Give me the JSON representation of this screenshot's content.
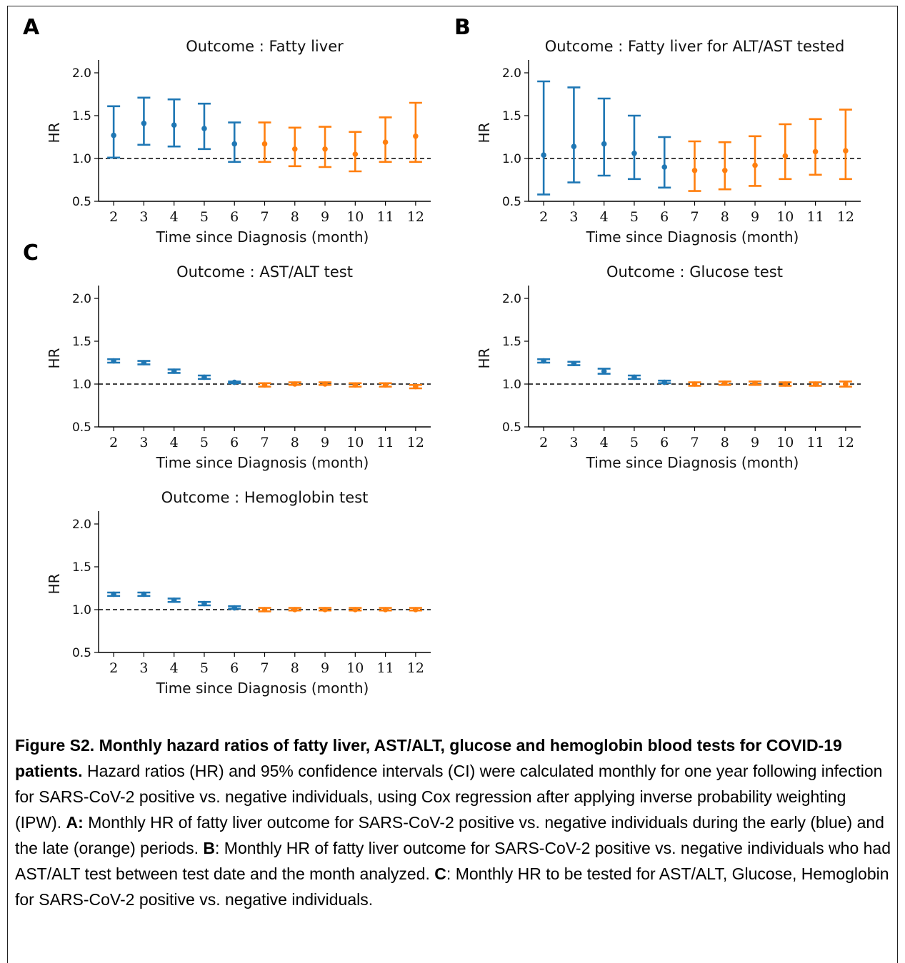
{
  "panel_letters": [
    "A",
    "B",
    "C"
  ],
  "colors": {
    "early": "#1f77b4",
    "late": "#ff7f0e",
    "reference": "#000000"
  },
  "chart_data": [
    {
      "type": "errorbar",
      "panel": "A",
      "title": "Outcome : Fatty liver",
      "xlabel": "Time since Diagnosis (month)",
      "ylabel": "HR",
      "ylim": [
        0.5,
        2.15
      ],
      "yticks": [
        "0.5",
        "1.0",
        "1.5",
        "2.0"
      ],
      "x": [
        2,
        3,
        4,
        5,
        6,
        7,
        8,
        9,
        10,
        11,
        12
      ],
      "hr": [
        1.27,
        1.41,
        1.39,
        1.35,
        1.17,
        1.17,
        1.11,
        1.11,
        1.05,
        1.19,
        1.26
      ],
      "ci_low": [
        1.01,
        1.16,
        1.14,
        1.11,
        0.96,
        0.96,
        0.91,
        0.9,
        0.85,
        0.96,
        0.96
      ],
      "ci_high": [
        1.61,
        1.71,
        1.69,
        1.64,
        1.42,
        1.42,
        1.36,
        1.37,
        1.31,
        1.48,
        1.65
      ],
      "period": [
        "early",
        "early",
        "early",
        "early",
        "early",
        "late",
        "late",
        "late",
        "late",
        "late",
        "late"
      ],
      "reference_line": 1.0
    },
    {
      "type": "errorbar",
      "panel": "B",
      "title": "Outcome : Fatty liver for ALT/AST tested",
      "xlabel": "Time since Diagnosis (month)",
      "ylabel": "HR",
      "ylim": [
        0.5,
        2.15
      ],
      "yticks": [
        "0.5",
        "1.0",
        "1.5",
        "2.0"
      ],
      "x": [
        2,
        3,
        4,
        5,
        6,
        7,
        8,
        9,
        10,
        11,
        12
      ],
      "hr": [
        1.04,
        1.14,
        1.17,
        1.06,
        0.9,
        0.86,
        0.86,
        0.92,
        1.03,
        1.08,
        1.09
      ],
      "ci_low": [
        0.58,
        0.72,
        0.8,
        0.76,
        0.66,
        0.62,
        0.64,
        0.68,
        0.76,
        0.81,
        0.76
      ],
      "ci_high": [
        1.9,
        1.83,
        1.7,
        1.5,
        1.25,
        1.2,
        1.19,
        1.26,
        1.4,
        1.46,
        1.57
      ],
      "period": [
        "early",
        "early",
        "early",
        "early",
        "early",
        "late",
        "late",
        "late",
        "late",
        "late",
        "late"
      ],
      "reference_line": 1.0
    },
    {
      "type": "errorbar",
      "panel": "C",
      "title": "Outcome : AST/ALT test",
      "xlabel": "Time since Diagnosis (month)",
      "ylabel": "HR",
      "ylim": [
        0.5,
        2.15
      ],
      "yticks": [
        "0.5",
        "1.0",
        "1.5",
        "2.0"
      ],
      "x": [
        2,
        3,
        4,
        5,
        6,
        7,
        8,
        9,
        10,
        11,
        12
      ],
      "hr": [
        1.27,
        1.25,
        1.15,
        1.08,
        1.02,
        0.99,
        1.0,
        1.0,
        0.99,
        0.99,
        0.97
      ],
      "ci_low": [
        1.25,
        1.23,
        1.13,
        1.06,
        1.01,
        0.97,
        0.99,
        0.99,
        0.97,
        0.97,
        0.95
      ],
      "ci_high": [
        1.29,
        1.27,
        1.17,
        1.1,
        1.03,
        1.01,
        1.02,
        1.02,
        1.01,
        1.01,
        0.99
      ],
      "period": [
        "early",
        "early",
        "early",
        "early",
        "early",
        "late",
        "late",
        "late",
        "late",
        "late",
        "late"
      ],
      "reference_line": 1.0
    },
    {
      "type": "errorbar",
      "panel": "",
      "title": "Outcome : Glucose test",
      "xlabel": "Time since Diagnosis (month)",
      "ylabel": "HR",
      "ylim": [
        0.5,
        2.15
      ],
      "yticks": [
        "0.5",
        "1.0",
        "1.5",
        "2.0"
      ],
      "x": [
        2,
        3,
        4,
        5,
        6,
        7,
        8,
        9,
        10,
        11,
        12
      ],
      "hr": [
        1.27,
        1.24,
        1.15,
        1.08,
        1.02,
        1.0,
        1.01,
        1.01,
        1.0,
        1.0,
        1.0
      ],
      "ci_low": [
        1.25,
        1.22,
        1.12,
        1.06,
        1.01,
        0.98,
        0.99,
        0.99,
        0.98,
        0.98,
        0.97
      ],
      "ci_high": [
        1.29,
        1.26,
        1.18,
        1.1,
        1.04,
        1.02,
        1.03,
        1.03,
        1.02,
        1.02,
        1.03
      ],
      "period": [
        "early",
        "early",
        "early",
        "early",
        "early",
        "late",
        "late",
        "late",
        "late",
        "late",
        "late"
      ],
      "reference_line": 1.0
    },
    {
      "type": "errorbar",
      "panel": "",
      "title": "Outcome : Hemoglobin test",
      "xlabel": "Time since Diagnosis (month)",
      "ylabel": "HR",
      "ylim": [
        0.5,
        2.15
      ],
      "yticks": [
        "0.5",
        "1.0",
        "1.5",
        "2.0"
      ],
      "x": [
        2,
        3,
        4,
        5,
        6,
        7,
        8,
        9,
        10,
        11,
        12
      ],
      "hr": [
        1.18,
        1.18,
        1.11,
        1.07,
        1.02,
        1.0,
        1.0,
        1.0,
        1.0,
        1.0,
        1.0
      ],
      "ci_low": [
        1.16,
        1.16,
        1.09,
        1.05,
        1.01,
        0.98,
        0.99,
        0.99,
        0.99,
        0.99,
        0.99
      ],
      "ci_high": [
        1.2,
        1.2,
        1.13,
        1.09,
        1.04,
        1.02,
        1.02,
        1.02,
        1.02,
        1.02,
        1.02
      ],
      "period": [
        "early",
        "early",
        "early",
        "early",
        "early",
        "late",
        "late",
        "late",
        "late",
        "late",
        "late"
      ],
      "reference_line": 1.0
    }
  ],
  "caption": {
    "title": "Figure S2. Monthly hazard ratios of fatty liver, AST/ALT, glucose and hemoglobin blood tests for COVID-19 patients.",
    "text1": " Hazard ratios (HR) and 95% confidence intervals (CI) were calculated monthly for one year following infection for SARS-CoV-2 positive vs. negative individuals, using Cox regression after applying inverse probability weighting (IPW). ",
    "label_a": "A:",
    "text_a": " Monthly HR of fatty liver outcome for SARS-CoV-2 positive vs. negative individuals during the early (blue) and the late (orange) periods. ",
    "label_b": "B",
    "text_b": ": Monthly HR of fatty liver outcome for SARS-CoV-2 positive vs. negative individuals who had AST/ALT test between test date and the month analyzed. ",
    "label_c": "C",
    "text_c": ": Monthly HR to be tested for AST/ALT, Glucose, Hemoglobin for SARS-CoV-2 positive vs. negative individuals."
  }
}
